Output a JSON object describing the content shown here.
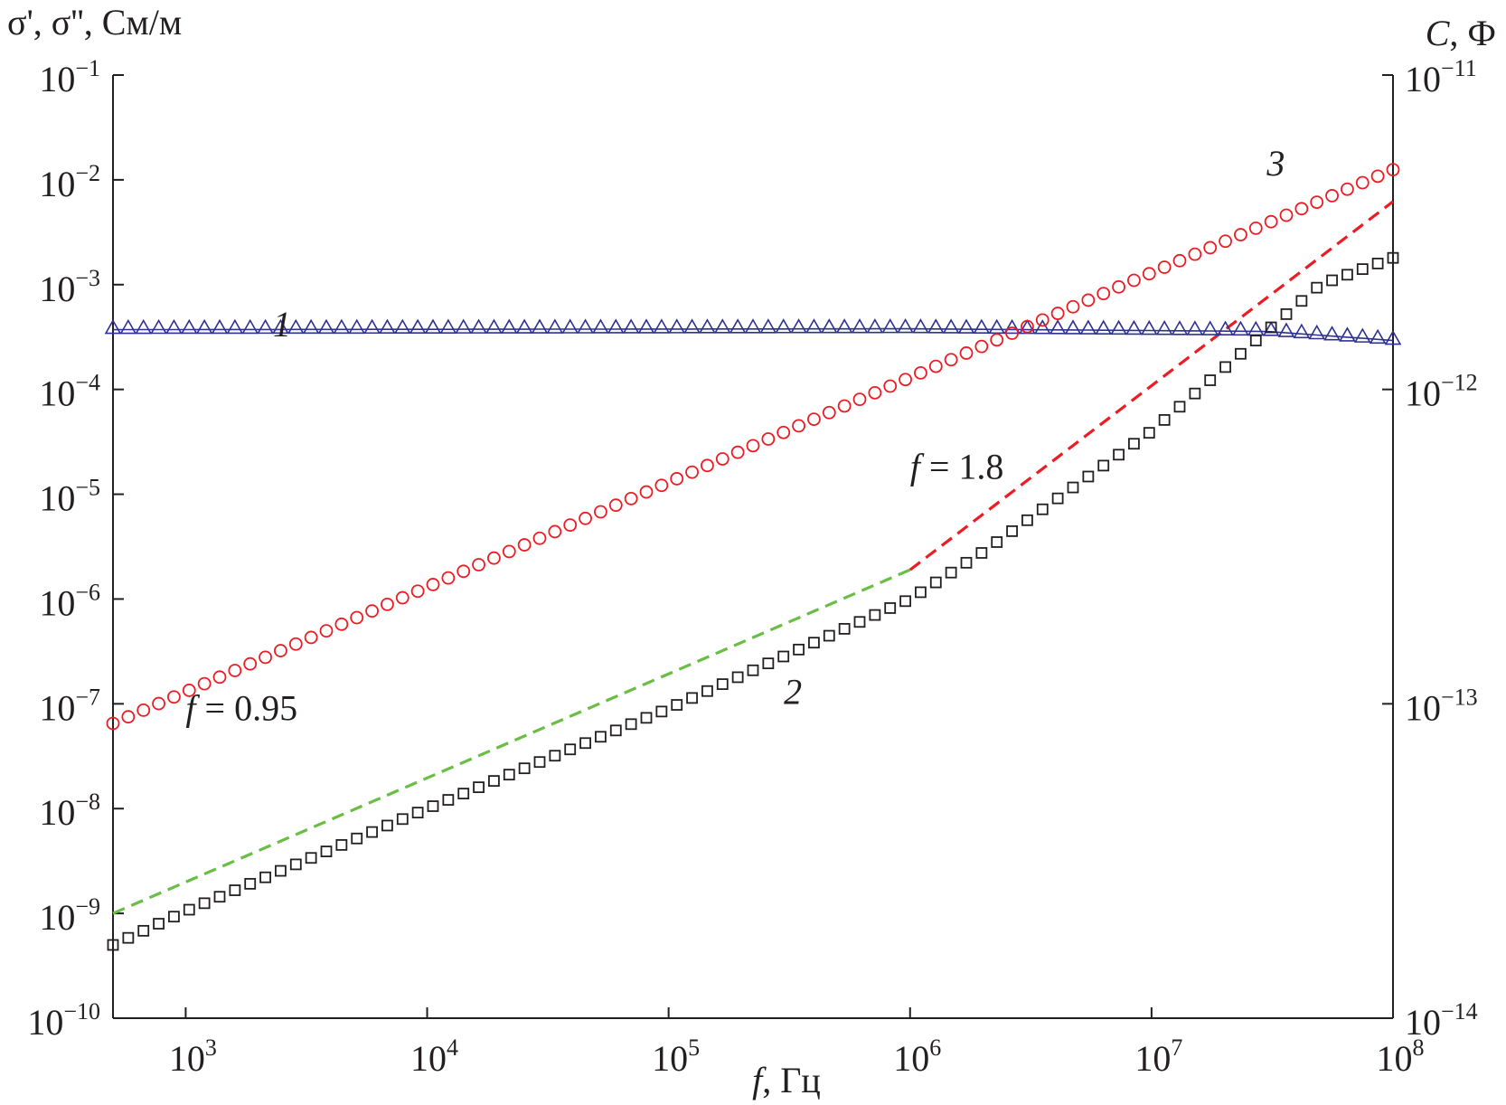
{
  "chart_data": {
    "type": "scatter",
    "x_axis": {
      "label_var": "f",
      "label_unit": ", Гц",
      "scale": "log",
      "range": [
        500,
        100000000
      ],
      "ticks": [
        {
          "value": 1000,
          "base": "10",
          "exp": "3"
        },
        {
          "value": 10000,
          "base": "10",
          "exp": "4"
        },
        {
          "value": 100000,
          "base": "10",
          "exp": "5"
        },
        {
          "value": 1000000,
          "base": "10",
          "exp": "6"
        },
        {
          "value": 10000000,
          "base": "10",
          "exp": "7"
        },
        {
          "value": 100000000,
          "base": "10",
          "exp": "8"
        }
      ]
    },
    "y_left_axis": {
      "label": "σ', σ'', См/м",
      "scale": "log",
      "range": [
        1e-10,
        0.1
      ],
      "ticks": [
        {
          "value": 0.1,
          "base": "10",
          "exp": "−1"
        },
        {
          "value": 0.01,
          "base": "10",
          "exp": "−2"
        },
        {
          "value": 0.001,
          "base": "10",
          "exp": "−3"
        },
        {
          "value": 0.0001,
          "base": "10",
          "exp": "−4"
        },
        {
          "value": 1e-05,
          "base": "10",
          "exp": "−5"
        },
        {
          "value": 1e-06,
          "base": "10",
          "exp": "−6"
        },
        {
          "value": 1e-07,
          "base": "10",
          "exp": "−7"
        },
        {
          "value": 1e-08,
          "base": "10",
          "exp": "−8"
        },
        {
          "value": 1e-09,
          "base": "10",
          "exp": "−9"
        },
        {
          "value": 1e-10,
          "base": "10",
          "exp": "−10"
        }
      ]
    },
    "y_right_axis": {
      "label_var": "C",
      "label_unit": ", Ф",
      "scale": "log",
      "range": [
        1e-14,
        1e-11
      ],
      "ticks": [
        {
          "value": 1e-11,
          "base": "10",
          "exp": "−11"
        },
        {
          "value": 1e-12,
          "base": "10",
          "exp": "−12"
        },
        {
          "value": 1e-13,
          "base": "10",
          "exp": "−13"
        },
        {
          "value": 1e-14,
          "base": "10",
          "exp": "−14"
        }
      ]
    },
    "grid": false,
    "series": [
      {
        "id": "1",
        "label": "1",
        "marker": "triangle",
        "color": "#2e3192",
        "axis": "right",
        "x_range": [
          500,
          100000000
        ],
        "y_points": [
          [
            500,
            1.57e-12
          ],
          [
            1000000,
            1.58e-12
          ],
          [
            30000000,
            1.55e-12
          ],
          [
            100000000,
            1.45e-12
          ]
        ],
        "count": 85
      },
      {
        "id": "2",
        "label": "2",
        "marker": "square",
        "color": "#231f20",
        "axis": "left",
        "x_range": [
          500,
          100000000
        ],
        "y_points": [
          [
            500,
            5e-10
          ],
          [
            1000,
            1.05e-09
          ],
          [
            10000,
            1e-08
          ],
          [
            100000,
            9e-08
          ],
          [
            1000000,
            1e-06
          ],
          [
            2000000,
            2.8e-06
          ],
          [
            10000000,
            4e-05
          ],
          [
            50000000,
            0.001
          ],
          [
            100000000,
            0.0018
          ]
        ],
        "count": 85
      },
      {
        "id": "3",
        "label": "3",
        "marker": "circle",
        "color": "#ed1c24",
        "axis": "left",
        "x_range": [
          500,
          100000000
        ],
        "y_points": [
          [
            500,
            6.5e-08
          ],
          [
            1000,
            1.3e-07
          ],
          [
            10000,
            1.3e-06
          ],
          [
            100000,
            1.3e-05
          ],
          [
            1000000,
            0.00013
          ],
          [
            10000000,
            0.0013
          ],
          [
            100000000,
            0.0125
          ]
        ],
        "count": 85
      }
    ],
    "fit_lines": [
      {
        "label": "f = 0.95",
        "color": "#6abd45",
        "points": [
          [
            500,
            1e-09
          ],
          [
            1000000,
            1.9e-06
          ]
        ]
      },
      {
        "label": "f = 1.8",
        "color": "#ed1c24",
        "points": [
          [
            1000000,
            1.9e-06
          ],
          [
            100000000,
            0.0062
          ]
        ]
      }
    ],
    "annotations": [
      {
        "text": "1",
        "x": 2300,
        "y": 0.00032,
        "italic": true
      },
      {
        "text": "2",
        "x": 300000,
        "y": 1e-07,
        "italic": true
      },
      {
        "text": "3",
        "x": 30000000,
        "y": 0.011,
        "italic": true
      },
      {
        "var": "f",
        "text": " = 0.95",
        "x": 1000,
        "y": 7e-08
      },
      {
        "var": "f",
        "text": " = 1.8",
        "x": 1000000,
        "y": 1.4e-05
      }
    ]
  }
}
